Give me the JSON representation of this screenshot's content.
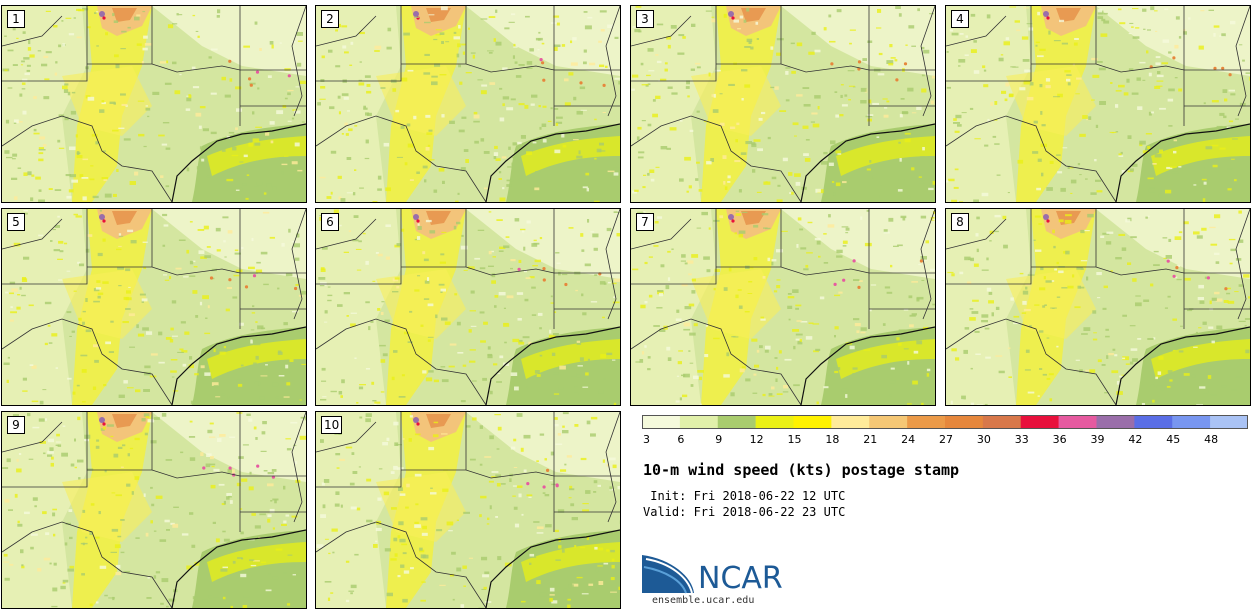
{
  "members": [
    {
      "label": "1"
    },
    {
      "label": "2"
    },
    {
      "label": "3"
    },
    {
      "label": "4"
    },
    {
      "label": "5"
    },
    {
      "label": "6"
    },
    {
      "label": "7"
    },
    {
      "label": "8"
    },
    {
      "label": "9"
    },
    {
      "label": "10"
    }
  ],
  "colorbar": {
    "colors": [
      "#f5fadc",
      "#e1f0aa",
      "#a9cc6e",
      "#eaf016",
      "#fff200",
      "#ffeb9a",
      "#f5c775",
      "#eb9a48",
      "#e6873c",
      "#d8784a",
      "#e8103c",
      "#e65aa0",
      "#9a6eaa",
      "#5a6ee6",
      "#7896f0",
      "#aac3f5"
    ],
    "tick_labels": [
      "3",
      "6",
      "9",
      "12",
      "15",
      "18",
      "21",
      "24",
      "27",
      "30",
      "33",
      "36",
      "39",
      "42",
      "45",
      "48"
    ]
  },
  "title": "10-m wind speed (kts) postage stamp",
  "init_line": " Init: Fri 2018-06-22 12 UTC",
  "valid_line": "Valid: Fri 2018-06-22 23 UTC",
  "logo": {
    "text": "NCAR",
    "url": "ensemble.ucar.edu"
  }
}
